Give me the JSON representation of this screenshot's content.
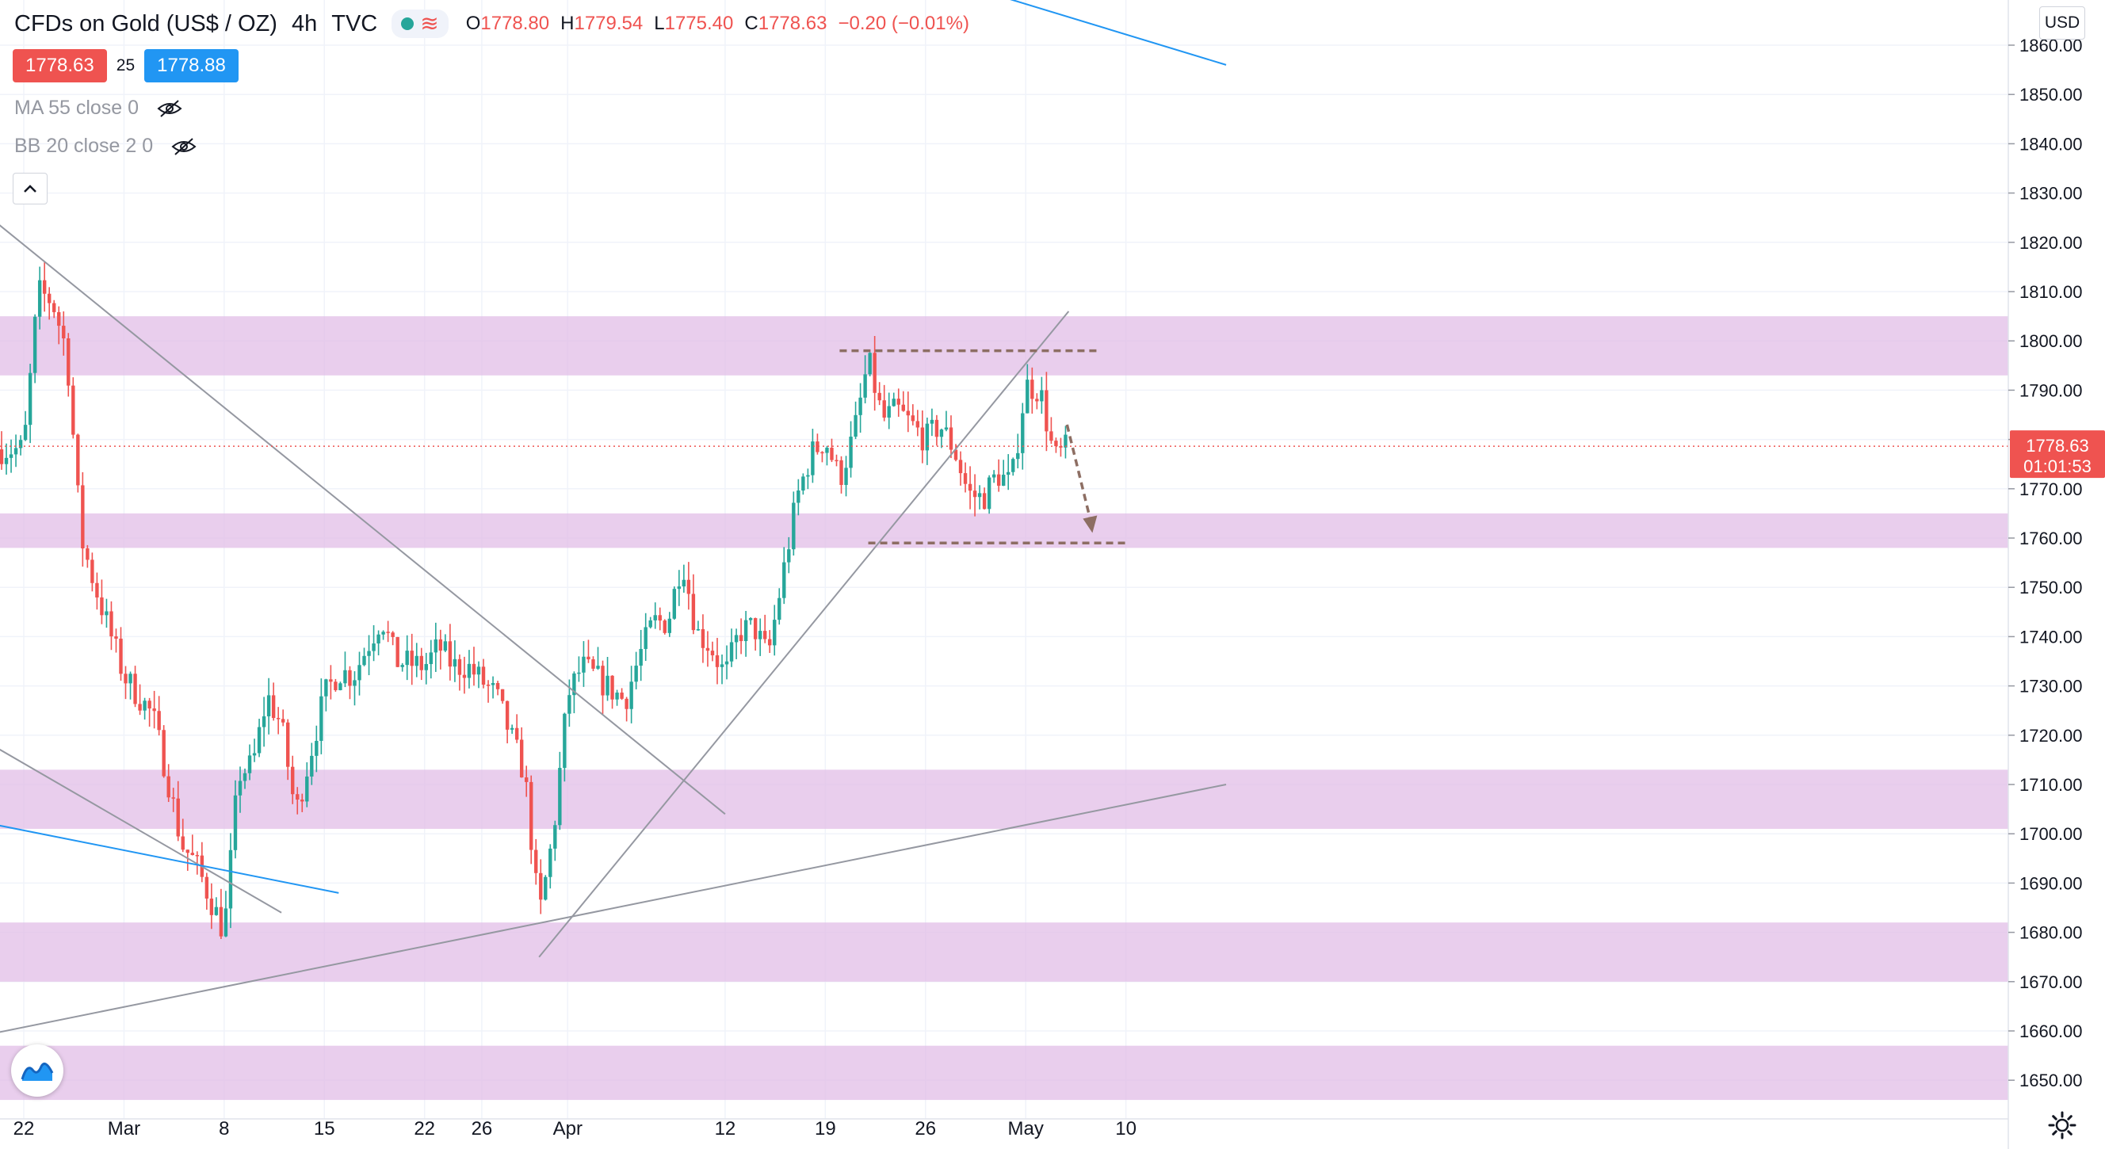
{
  "header": {
    "symbol": "CFDs on Gold (US$ / OZ)",
    "timeframe": "4h",
    "source": "TVC",
    "ohlc": [
      {
        "key": "O",
        "value": "1778.80"
      },
      {
        "key": "H",
        "value": "1779.54"
      },
      {
        "key": "L",
        "value": "1775.40"
      },
      {
        "key": "C",
        "value": "1778.63"
      },
      {
        "key": "",
        "value": "−0.20 (−0.01%)"
      }
    ]
  },
  "trade": {
    "sell_price": "1778.63",
    "spread": "25",
    "buy_price": "1778.88"
  },
  "indicators": [
    {
      "label": "MA 55 close 0",
      "visible": false
    },
    {
      "label": "BB 20 close 2 0",
      "visible": false
    }
  ],
  "currency_button": "USD",
  "last_price": {
    "price": "1778.63",
    "countdown": "01:01:53",
    "value": 1778.63
  },
  "colors": {
    "up": "#26a69a",
    "down": "#ef5350",
    "zone": "#e1bee7",
    "trendline": "#9598a1",
    "blue_line": "#2196f3",
    "level_dashed": "#8d6e63",
    "grid": "#f0f3fa"
  },
  "icons": [
    "eye-off-icon",
    "chevron-up-icon",
    "tradingview-logo-icon",
    "gear-icon",
    "dot-icon",
    "wave-icon"
  ],
  "chart_data": {
    "type": "candlestick",
    "title": "CFDs on Gold (US$ / OZ)",
    "interval": "4h",
    "ylim": [
      1646,
      1864
    ],
    "y_ticks": [
      "1860.00",
      "1850.00",
      "1840.00",
      "1830.00",
      "1820.00",
      "1810.00",
      "1800.00",
      "1790.00",
      "1780.00",
      "1770.00",
      "1760.00",
      "1750.00",
      "1740.00",
      "1730.00",
      "1720.00",
      "1710.00",
      "1700.00",
      "1690.00",
      "1680.00",
      "1670.00",
      "1660.00",
      "1650.00"
    ],
    "x_ticks": [
      {
        "label": "22",
        "date": "2021-02-22"
      },
      {
        "label": "Mar",
        "date": "2021-03-01"
      },
      {
        "label": "8",
        "date": "2021-03-08"
      },
      {
        "label": "15",
        "date": "2021-03-15"
      },
      {
        "label": "22",
        "date": "2021-03-22"
      },
      {
        "label": "26",
        "date": "2021-03-26"
      },
      {
        "label": "Apr",
        "date": "2021-04-01"
      },
      {
        "label": "12",
        "date": "2021-04-12"
      },
      {
        "label": "19",
        "date": "2021-04-19"
      },
      {
        "label": "26",
        "date": "2021-04-26"
      },
      {
        "label": "May",
        "date": "2021-05-03"
      },
      {
        "label": "10",
        "date": "2021-05-10"
      }
    ],
    "price_path": [
      [
        "2021-02-22",
        1778
      ],
      [
        "2021-02-23",
        1810
      ],
      [
        "2021-02-24",
        1808
      ],
      [
        "2021-02-25",
        1798
      ],
      [
        "2021-02-26",
        1760
      ],
      [
        "2021-02-27",
        1750
      ],
      [
        "2021-03-01",
        1732
      ],
      [
        "2021-03-02",
        1728
      ],
      [
        "2021-03-03",
        1724
      ],
      [
        "2021-03-04",
        1712
      ],
      [
        "2021-03-05",
        1698
      ],
      [
        "2021-03-06",
        1694
      ],
      [
        "2021-03-08",
        1680
      ],
      [
        "2021-03-09",
        1712
      ],
      [
        "2021-03-10",
        1714
      ],
      [
        "2021-03-11",
        1728
      ],
      [
        "2021-03-12",
        1722
      ],
      [
        "2021-03-13",
        1704
      ],
      [
        "2021-03-15",
        1728
      ],
      [
        "2021-03-16",
        1733
      ],
      [
        "2021-03-17",
        1732
      ],
      [
        "2021-03-18",
        1738
      ],
      [
        "2021-03-19",
        1744
      ],
      [
        "2021-03-20",
        1735
      ],
      [
        "2021-03-22",
        1734
      ],
      [
        "2021-03-23",
        1738
      ],
      [
        "2021-03-24",
        1734
      ],
      [
        "2021-03-25",
        1734
      ],
      [
        "2021-03-26",
        1731
      ],
      [
        "2021-03-27",
        1728
      ],
      [
        "2021-03-29",
        1712
      ],
      [
        "2021-03-30",
        1683
      ],
      [
        "2021-03-31",
        1700
      ],
      [
        "2021-04-01",
        1728
      ],
      [
        "2021-04-02",
        1734
      ],
      [
        "2021-04-05",
        1727
      ],
      [
        "2021-04-06",
        1736
      ],
      [
        "2021-04-07",
        1743
      ],
      [
        "2021-04-08",
        1743
      ],
      [
        "2021-04-09",
        1756
      ],
      [
        "2021-04-10",
        1741
      ],
      [
        "2021-04-11",
        1738
      ],
      [
        "2021-04-12",
        1732
      ],
      [
        "2021-04-13",
        1741
      ],
      [
        "2021-04-14",
        1742
      ],
      [
        "2021-04-15",
        1736
      ],
      [
        "2021-04-16",
        1752
      ],
      [
        "2021-04-17",
        1768
      ],
      [
        "2021-04-18",
        1777
      ],
      [
        "2021-04-19",
        1780
      ],
      [
        "2021-04-20",
        1772
      ],
      [
        "2021-04-21",
        1781
      ],
      [
        "2021-04-22",
        1796
      ],
      [
        "2021-04-23",
        1784
      ],
      [
        "2021-04-24",
        1786
      ],
      [
        "2021-04-26",
        1780
      ],
      [
        "2021-04-27",
        1783
      ],
      [
        "2021-04-28",
        1778
      ],
      [
        "2021-04-29",
        1769
      ],
      [
        "2021-04-30",
        1768
      ],
      [
        "2021-05-01",
        1773
      ],
      [
        "2021-05-02",
        1771
      ],
      [
        "2021-05-03",
        1791
      ],
      [
        "2021-05-04",
        1790
      ],
      [
        "2021-05-05",
        1776
      ],
      [
        "2021-05-06",
        1778.63
      ]
    ],
    "zones": [
      [
        1793,
        1805
      ],
      [
        1758,
        1765
      ],
      [
        1701,
        1713
      ],
      [
        1670,
        1682
      ],
      [
        1646,
        1657
      ]
    ],
    "trendlines": [
      {
        "from": [
          "2021-02-15",
          1836
        ],
        "to": [
          "2021-04-12",
          1704
        ],
        "color": "gray"
      },
      {
        "from": [
          "2021-02-18",
          1721
        ],
        "to": [
          "2021-03-12",
          1684
        ],
        "color": "gray"
      },
      {
        "from": [
          "2021-02-19",
          1659
        ],
        "to": [
          "2021-05-17",
          1710
        ],
        "color": "gray"
      },
      {
        "from": [
          "2021-03-30",
          1675
        ],
        "to": [
          "2021-05-06",
          1806
        ],
        "color": "gray"
      },
      {
        "from": [
          "2021-02-18",
          1703
        ],
        "to": [
          "2021-03-16",
          1688
        ],
        "color": "blue"
      },
      {
        "from": [
          "2021-04-30",
          1871
        ],
        "to": [
          "2021-05-17",
          1856
        ],
        "color": "blue"
      }
    ],
    "levels": [
      {
        "price": 1798,
        "from": "2021-04-20",
        "to": "2021-05-08"
      },
      {
        "price": 1759,
        "from": "2021-04-22",
        "to": "2021-05-10"
      }
    ],
    "projection": {
      "from": [
        "2021-05-05",
        1783
      ],
      "to": [
        "2021-05-06",
        1762
      ]
    },
    "grid": true
  }
}
